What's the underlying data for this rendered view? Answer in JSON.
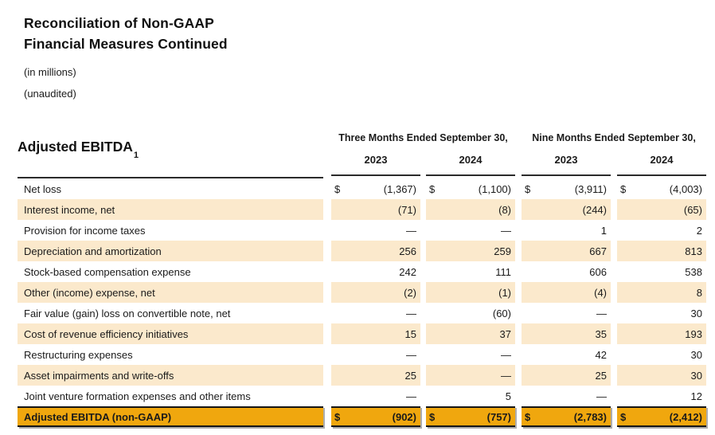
{
  "header": {
    "title_line1": "Reconciliation of Non-GAAP",
    "title_line2": "Financial Measures Continued",
    "note_millions": "(in millions)",
    "note_unaudited": "(unaudited)"
  },
  "table": {
    "section_title": "Adjusted EBITDA",
    "section_title_sup": "1",
    "group_headers": [
      "Three Months Ended September 30,",
      "Nine Months Ended September 30,"
    ],
    "year_headers": [
      "2023",
      "2024",
      "2023",
      "2024"
    ],
    "currency_symbol": "$",
    "rows": [
      {
        "label": "Net loss",
        "values": [
          "(1,367)",
          "(1,100)",
          "(3,911)",
          "(4,003)"
        ],
        "dollar_sign": true,
        "highlighted": false,
        "total": false
      },
      {
        "label": "Interest income, net",
        "values": [
          "(71)",
          "(8)",
          "(244)",
          "(65)"
        ],
        "dollar_sign": false,
        "highlighted": true,
        "total": false
      },
      {
        "label": "Provision for income taxes",
        "values": [
          "—",
          "—",
          "1",
          "2"
        ],
        "dollar_sign": false,
        "highlighted": false,
        "total": false
      },
      {
        "label": "Depreciation and amortization",
        "values": [
          "256",
          "259",
          "667",
          "813"
        ],
        "dollar_sign": false,
        "highlighted": true,
        "total": false
      },
      {
        "label": "Stock-based compensation expense",
        "values": [
          "242",
          "111",
          "606",
          "538"
        ],
        "dollar_sign": false,
        "highlighted": false,
        "total": false
      },
      {
        "label": "Other (income) expense, net",
        "values": [
          "(2)",
          "(1)",
          "(4)",
          "8"
        ],
        "dollar_sign": false,
        "highlighted": true,
        "total": false
      },
      {
        "label": "Fair value (gain) loss on convertible note, net",
        "values": [
          "—",
          "(60)",
          "—",
          "30"
        ],
        "dollar_sign": false,
        "highlighted": false,
        "total": false
      },
      {
        "label": "Cost of revenue efficiency initiatives",
        "values": [
          "15",
          "37",
          "35",
          "193"
        ],
        "dollar_sign": false,
        "highlighted": true,
        "total": false
      },
      {
        "label": "Restructuring expenses",
        "values": [
          "—",
          "—",
          "42",
          "30"
        ],
        "dollar_sign": false,
        "highlighted": false,
        "total": false
      },
      {
        "label": "Asset impairments and write-offs",
        "values": [
          "25",
          "—",
          "25",
          "30"
        ],
        "dollar_sign": false,
        "highlighted": true,
        "total": false
      },
      {
        "label": "Joint venture formation expenses and other items",
        "values": [
          "—",
          "5",
          "—",
          "12"
        ],
        "dollar_sign": false,
        "highlighted": false,
        "total": false
      },
      {
        "label": "Adjusted EBITDA (non-GAAP)",
        "values": [
          "(902)",
          "(757)",
          "(2,783)",
          "(2,412)"
        ],
        "dollar_sign": true,
        "highlighted": false,
        "total": true
      }
    ]
  },
  "colors": {
    "highlight_row_bg": "#FBE9CC",
    "total_row_bg": "#F0A70E",
    "text": "#1A1A1A"
  }
}
